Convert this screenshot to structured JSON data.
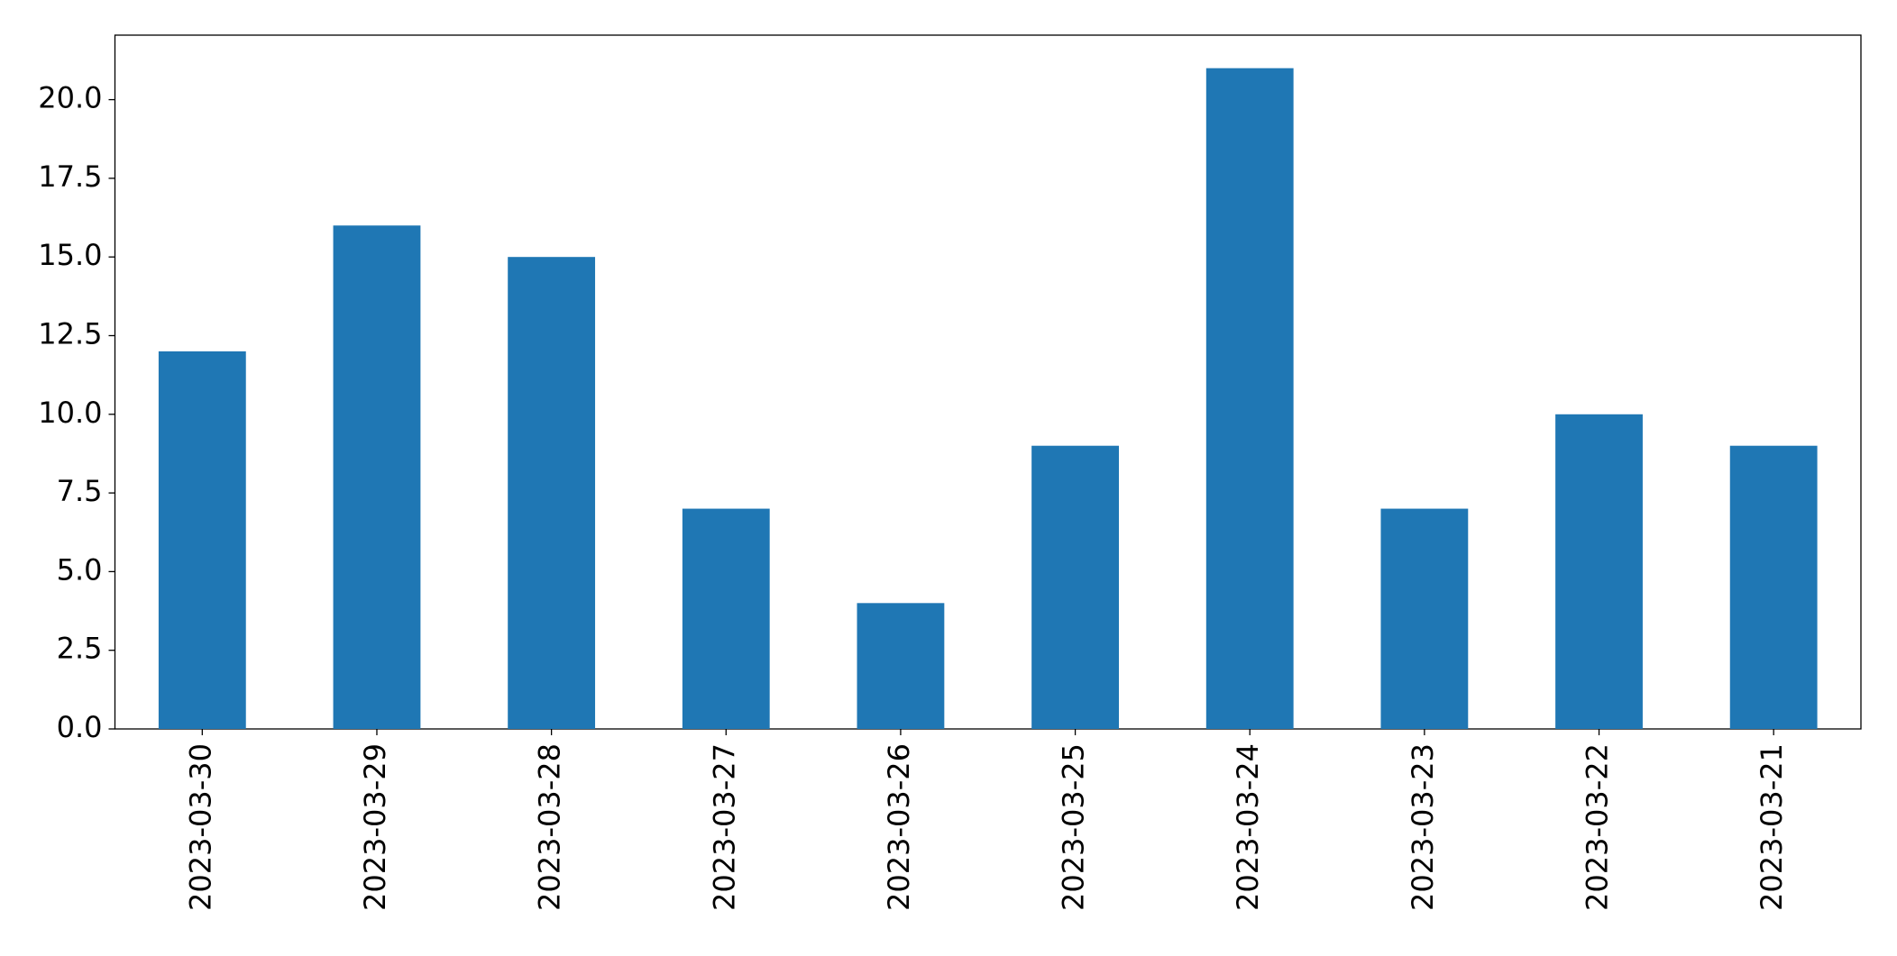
{
  "chart_data": {
    "type": "bar",
    "categories": [
      "2023-03-30",
      "2023-03-29",
      "2023-03-28",
      "2023-03-27",
      "2023-03-26",
      "2023-03-25",
      "2023-03-24",
      "2023-03-23",
      "2023-03-22",
      "2023-03-21"
    ],
    "values": [
      12,
      16,
      15,
      7,
      4,
      9,
      21,
      7,
      10,
      9
    ],
    "color": "#1f77b4",
    "ylim": [
      0,
      22.05
    ],
    "yticks": [
      {
        "value": 0,
        "label": "0.0"
      },
      2.5,
      {
        "value": 5,
        "label": "5.0"
      },
      7.5,
      {
        "value": 10,
        "label": "10.0"
      },
      12.5,
      {
        "value": 15,
        "label": "15.0"
      },
      17.5,
      {
        "value": 20,
        "label": "20.0"
      }
    ],
    "grid": false
  }
}
